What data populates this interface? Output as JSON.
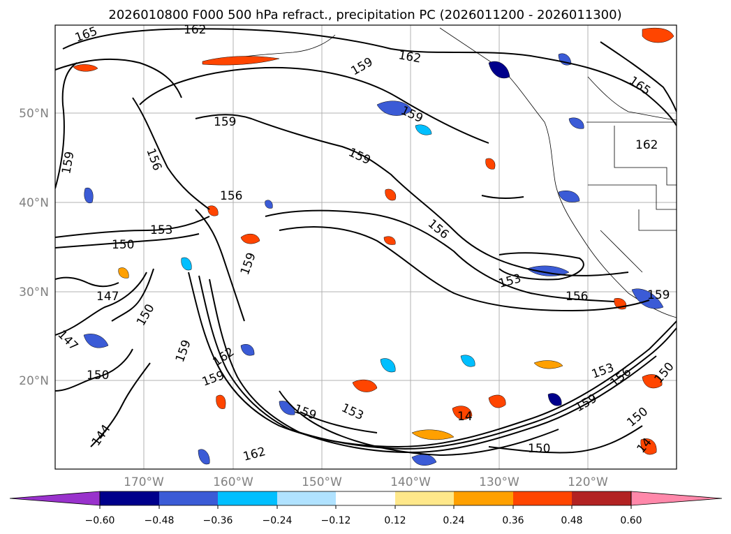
{
  "title": "2026010800 F000 500 hPa refract., precipitation PC (2026011200 - 2026011300)",
  "lat_labels": [
    "50°N",
    "40°N",
    "30°N",
    "20°N"
  ],
  "lon_labels": [
    "170°W",
    "160°W",
    "150°W",
    "140°W",
    "130°W",
    "120°W"
  ],
  "contour_labels": [
    "165",
    "162",
    "159",
    "159",
    "162",
    "165",
    "159",
    "159",
    "156",
    "159",
    "156",
    "156",
    "153",
    "150",
    "159",
    "153",
    "156",
    "150",
    "147",
    "147",
    "150",
    "162",
    "159",
    "159",
    "153",
    "144",
    "162",
    "150",
    "159",
    "153",
    "150",
    "156",
    "159",
    "150",
    "162",
    "159",
    "14",
    "14"
  ],
  "colorbar": {
    "ticks": [
      "−0.60",
      "−0.48",
      "−0.36",
      "−0.24",
      "−0.12",
      "0.12",
      "0.24",
      "0.36",
      "0.48",
      "0.60"
    ],
    "colors": [
      "#9932cc",
      "#00008b",
      "#3b5bd6",
      "#00bfff",
      "#b0e2ff",
      "#ffffff",
      "#ffe88a",
      "#ffa000",
      "#ff4500",
      "#b22222",
      "#ff88aa"
    ]
  }
}
